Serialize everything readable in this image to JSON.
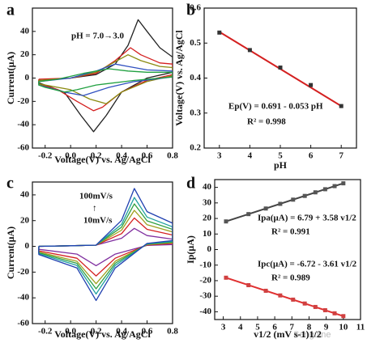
{
  "chart_data": [
    {
      "type": "line",
      "label": "a",
      "xlabel": "Voltage(V) vs. Ag/AgCl",
      "ylabel": "Current(μA)",
      "xlim": [
        -0.3,
        0.8
      ],
      "ylim": [
        -60,
        60
      ],
      "xticks": [
        -0.2,
        {
          "value": 0,
          "label": "0.0"
        },
        0.2,
        0.4,
        0.6,
        0.8
      ],
      "yticks": [
        -60,
        -40,
        -20,
        0,
        20,
        40
      ],
      "annotations": [
        "pH = 7.0→3.0"
      ],
      "series": [
        {
          "color": "#222222",
          "x": [
            -0.25,
            0,
            0.2,
            0.35,
            0.45,
            0.53,
            0.6,
            0.7,
            0.8,
            0.8,
            0.6,
            0.4,
            0.28,
            0.18,
            0.08,
            -0.05,
            -0.25,
            -0.25
          ],
          "values": [
            -2,
            0,
            3,
            12,
            28,
            50,
            40,
            26,
            18,
            5,
            0,
            -12,
            -32,
            -46,
            -32,
            -12,
            -4,
            -2
          ]
        },
        {
          "color": "#d42020",
          "x": [
            -0.25,
            0,
            0.2,
            0.35,
            0.47,
            0.55,
            0.7,
            0.8,
            0.8,
            0.6,
            0.4,
            0.25,
            0.18,
            0.05,
            -0.1,
            -0.25,
            -0.25
          ],
          "values": [
            -1,
            0,
            4,
            15,
            26,
            20,
            13,
            12,
            3,
            -2,
            -12,
            -25,
            -28,
            -20,
            -10,
            -5,
            -1
          ]
        },
        {
          "color": "#8a8a10",
          "x": [
            -0.25,
            0,
            0.2,
            0.35,
            0.45,
            0.55,
            0.7,
            0.8,
            0.8,
            0.6,
            0.4,
            0.28,
            0.15,
            0,
            -0.25,
            -0.25
          ],
          "values": [
            -2,
            0,
            5,
            14,
            20,
            15,
            10,
            9,
            2,
            -3,
            -12,
            -22,
            -18,
            -10,
            -5,
            -2
          ]
        },
        {
          "color": "#3050c0",
          "x": [
            -0.25,
            0,
            0.2,
            0.35,
            0.45,
            0.6,
            0.8,
            0.8,
            0.5,
            0.3,
            0.1,
            -0.05,
            -0.25,
            -0.25
          ],
          "values": [
            -3,
            0,
            6,
            12,
            10,
            7,
            6,
            1,
            -3,
            -8,
            -15,
            -12,
            -6,
            -3
          ]
        },
        {
          "color": "#20a040",
          "x": [
            -0.25,
            -0.1,
            0.1,
            0.3,
            0.45,
            0.6,
            0.8,
            0.8,
            0.5,
            0.2,
            0.05,
            -0.05,
            -0.2,
            -0.25,
            -0.25
          ],
          "values": [
            -3,
            -1,
            4,
            8,
            6,
            5,
            5,
            1,
            -2,
            -6,
            -10,
            -12,
            -8,
            -6,
            -3
          ]
        }
      ]
    },
    {
      "type": "scatter",
      "label": "b",
      "xlabel": "pH",
      "ylabel": "Voltage(V) vs. Ag/AgCl",
      "xlim": [
        2.5,
        7.5
      ],
      "ylim": [
        0.2,
        0.6
      ],
      "xticks": [
        3,
        4,
        5,
        6,
        7
      ],
      "yticks": [
        0.2,
        0.3,
        0.4,
        0.5,
        0.6
      ],
      "annotations": [
        "Ep(V) = 0.691 - 0.053 pH",
        "R² = 0.998"
      ],
      "series": [
        {
          "mode": "line",
          "color": "#d42020",
          "x": [
            3,
            7
          ],
          "values": [
            0.532,
            0.32
          ]
        },
        {
          "mode": "markers",
          "color": "#333333",
          "x": [
            3,
            4,
            5,
            6,
            7
          ],
          "values": [
            0.53,
            0.48,
            0.43,
            0.38,
            0.32
          ]
        }
      ]
    },
    {
      "type": "line",
      "label": "c",
      "xlabel": "Voltage(V) vs. Ag/AgCl",
      "ylabel": "Current(μA)",
      "xlim": [
        -0.3,
        0.8
      ],
      "ylim": [
        -60,
        50
      ],
      "xticks": [
        -0.2,
        {
          "value": 0,
          "label": "0.0"
        },
        0.2,
        0.4,
        0.6,
        0.8
      ],
      "yticks": [
        -60,
        -40,
        -20,
        0,
        20,
        40
      ],
      "annotations": [
        "100mV/s",
        "↑",
        "10mV/s"
      ],
      "series": [
        {
          "color": "#8030a0",
          "x": [
            -0.25,
            0,
            0.2,
            0.4,
            0.5,
            0.6,
            0.8,
            0.8,
            0.6,
            0.35,
            0.2,
            0.05,
            -0.25,
            -0.25
          ],
          "values": [
            0,
            0.5,
            1,
            6.3,
            14,
            8.4,
            5.6,
            1.4,
            0.7,
            -6,
            -15,
            -6,
            -2.3,
            0
          ]
        },
        {
          "color": "#d42020",
          "x": [
            -0.25,
            0,
            0.2,
            0.4,
            0.5,
            0.6,
            0.8,
            0.8,
            0.6,
            0.35,
            0.2,
            0.05,
            -0.25,
            -0.25
          ],
          "values": [
            0,
            0.5,
            1,
            9.9,
            22,
            13.2,
            8.8,
            2.2,
            1.1,
            -9.2,
            -23,
            -9.2,
            -3.5,
            0
          ]
        },
        {
          "color": "#a0a020",
          "x": [
            -0.25,
            0,
            0.2,
            0.4,
            0.5,
            0.6,
            0.8,
            0.8,
            0.6,
            0.35,
            0.2,
            0.05,
            -0.25,
            -0.25
          ],
          "values": [
            0,
            0.5,
            1,
            12.6,
            28,
            16.8,
            11.2,
            2.8,
            1.4,
            -11.6,
            -29,
            -11.6,
            -4.4,
            0
          ]
        },
        {
          "color": "#30a040",
          "x": [
            -0.25,
            0,
            0.2,
            0.4,
            0.5,
            0.6,
            0.8,
            0.8,
            0.6,
            0.35,
            0.2,
            0.05,
            -0.25,
            -0.25
          ],
          "values": [
            0,
            0.5,
            1,
            14.9,
            33,
            19.8,
            13.2,
            3.3,
            1.7,
            -13.2,
            -33,
            -13.2,
            -5,
            0
          ]
        },
        {
          "color": "#20a0a0",
          "x": [
            -0.25,
            0,
            0.2,
            0.4,
            0.5,
            0.6,
            0.8,
            0.8,
            0.6,
            0.35,
            0.2,
            0.05,
            -0.25,
            -0.25
          ],
          "values": [
            0,
            0.5,
            1,
            17.1,
            38,
            22.8,
            15.2,
            3.8,
            1.9,
            -14.8,
            -37,
            -14.8,
            -5.6,
            0
          ]
        },
        {
          "color": "#2040b0",
          "x": [
            -0.25,
            0,
            0.2,
            0.4,
            0.5,
            0.6,
            0.8,
            0.8,
            0.6,
            0.35,
            0.2,
            0.05,
            -0.25,
            -0.25
          ],
          "values": [
            0,
            0.5,
            1,
            20.3,
            45,
            27,
            18,
            4.5,
            2.3,
            -16.8,
            -42,
            -16.8,
            -6.3,
            0
          ]
        }
      ]
    },
    {
      "type": "scatter",
      "label": "d",
      "xlabel": "v1/2 (mV s-1)1/2",
      "ylabel": "Ip(μA)",
      "xlim": [
        2.5,
        11
      ],
      "ylim": [
        -45,
        45
      ],
      "xticks": [
        3,
        4,
        5,
        6,
        7,
        8,
        9,
        10,
        11
      ],
      "yticks": [
        -40,
        -30,
        -20,
        -10,
        0,
        10,
        20,
        30,
        40
      ],
      "annotations": [
        "Ipa(μA) = 6.79 + 3.58 v1/2",
        "R² = 0.991",
        "Ipc(μA) = -6.72 - 3.61 v1/2",
        "R² = 0.989"
      ],
      "series": [
        {
          "mode": "line",
          "color": "#444444",
          "x": [
            3.16,
            10
          ],
          "values": [
            18.1,
            42.6
          ]
        },
        {
          "mode": "markers",
          "color": "#555555",
          "x": [
            3.16,
            4.47,
            5.48,
            6.32,
            7.07,
            7.75,
            8.37,
            8.94,
            9.49,
            10
          ],
          "values": [
            18.1,
            22.8,
            26.4,
            29.4,
            32.1,
            34.5,
            36.8,
            38.8,
            40.8,
            42.6
          ]
        },
        {
          "mode": "line",
          "color": "#e03030",
          "x": [
            3.16,
            10
          ],
          "values": [
            -18.1,
            -42.8
          ]
        },
        {
          "mode": "markers",
          "color": "#d04040",
          "x": [
            3.16,
            4.47,
            5.48,
            6.32,
            7.07,
            7.75,
            8.37,
            8.94,
            9.49,
            10
          ],
          "values": [
            -18.1,
            -22.9,
            -26.5,
            -29.5,
            -32.2,
            -34.7,
            -36.9,
            -39.0,
            -41.0,
            -42.8
          ]
        }
      ]
    }
  ],
  "watermark": "Sanguine"
}
